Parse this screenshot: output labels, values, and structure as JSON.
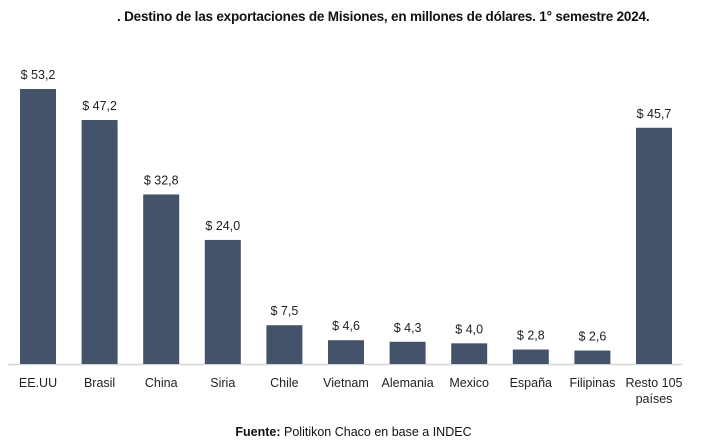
{
  "chart_data": {
    "type": "bar",
    "title": ". Destino de las exportaciones de Misiones, en millones de dólares. 1° semestre 2024.",
    "xlabel": "",
    "ylabel": "",
    "categories": [
      "EE.UU",
      "Brasil",
      "China",
      "Siria",
      "Chile",
      "Vietnam",
      "Alemania",
      "Mexico",
      "España",
      "Filipinas",
      "Resto 105\npaíses"
    ],
    "values": [
      53.2,
      47.2,
      32.8,
      24.0,
      7.5,
      4.6,
      4.3,
      4.0,
      2.8,
      2.6,
      45.7
    ],
    "value_labels": [
      "$ 53,2",
      "$ 47,2",
      "$ 32,8",
      "$ 24,0",
      "$ 7,5",
      "$ 4,6",
      "$ 4,3",
      "$ 4,0",
      "$ 2,8",
      "$ 2,6",
      "$ 45,7"
    ],
    "ylim": [
      0,
      53.2
    ],
    "grid": false,
    "bar_color": "#44536a"
  },
  "source": {
    "label": "Fuente:",
    "text": " Politikon Chaco en base a INDEC"
  }
}
